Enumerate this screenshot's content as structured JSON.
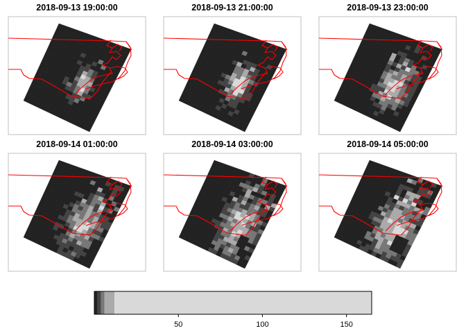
{
  "panels": [
    {
      "title": "2018-09-13 19:00:00",
      "frame": 0
    },
    {
      "title": "2018-09-13 21:00:00",
      "frame": 1
    },
    {
      "title": "2018-09-13 23:00:00",
      "frame": 2
    },
    {
      "title": "2018-09-14 01:00:00",
      "frame": 3
    },
    {
      "title": "2018-09-14 03:00:00",
      "frame": 4
    },
    {
      "title": "2018-09-14 05:00:00",
      "frame": 5
    }
  ],
  "legend": {
    "range": [
      0,
      165
    ],
    "ticks": [
      "50",
      "100",
      "150"
    ],
    "tick_values": [
      50,
      100,
      150
    ],
    "breaks": [
      0,
      2,
      4,
      6,
      12,
      165
    ],
    "colors": [
      "#222222",
      "#444444",
      "#777777",
      "#aaaaaa",
      "#d9d9d9"
    ]
  },
  "colors": {
    "boundary": "#ff0000",
    "frame": "#bfbfbf",
    "background": "#ffffff"
  }
}
